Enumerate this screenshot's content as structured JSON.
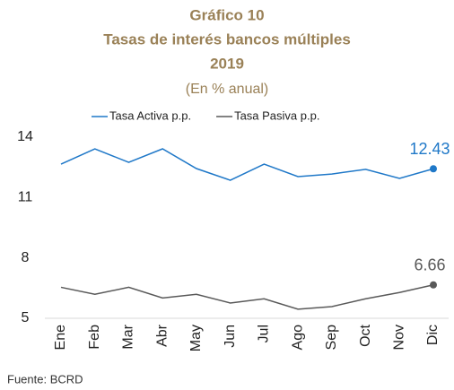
{
  "chart_data": {
    "type": "line",
    "title_lines": [
      "Gráfico 10",
      "Tasas de interés bancos múltiples",
      "2019"
    ],
    "subtitle": "(En % anual)",
    "source": "Fuente: BCRD",
    "categories": [
      "Ene",
      "Feb",
      "Mar",
      "Abr",
      "May",
      "Jun",
      "Jul",
      "Ago",
      "Sep",
      "Oct",
      "Nov",
      "Dic"
    ],
    "series": [
      {
        "name": "Tasa Activa p.p.",
        "color": "#1f78c8",
        "values": [
          12.66,
          13.42,
          12.75,
          13.42,
          12.44,
          11.86,
          12.66,
          12.04,
          12.17,
          12.4,
          11.95,
          12.43
        ]
      },
      {
        "name": "Tasa Pasiva p.p.",
        "color": "#595959",
        "values": [
          6.54,
          6.19,
          6.54,
          6.01,
          6.19,
          5.76,
          5.97,
          5.45,
          5.58,
          5.97,
          6.28,
          6.66
        ]
      }
    ],
    "ylim": [
      5,
      14
    ],
    "yticks": [
      5,
      8,
      11,
      14
    ],
    "grid": false,
    "label_last": true,
    "legend": "top"
  }
}
